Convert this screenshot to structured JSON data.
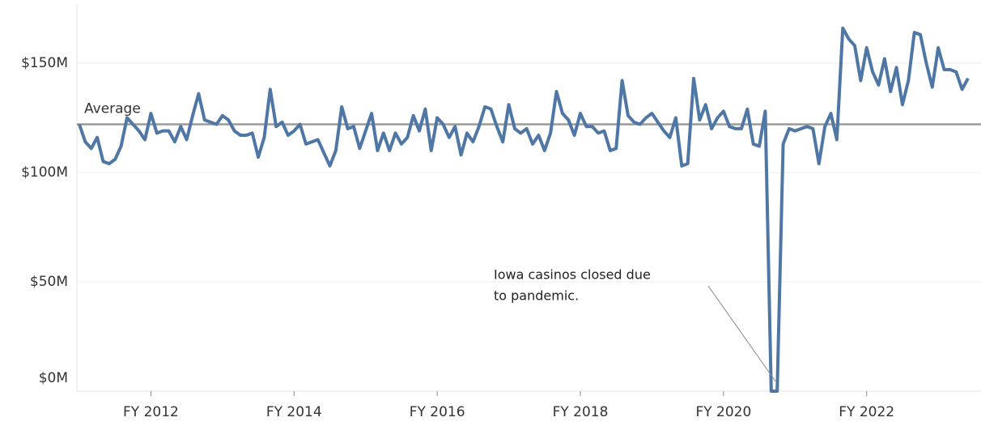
{
  "chart_data": {
    "type": "line",
    "categories": [
      null,
      null,
      null,
      null,
      null,
      null,
      null,
      null,
      null,
      null,
      null,
      null,
      "FY 2012",
      null,
      null,
      null,
      null,
      null,
      null,
      null,
      null,
      null,
      null,
      null,
      null,
      null,
      null,
      null,
      null,
      null,
      null,
      null,
      null,
      null,
      null,
      null,
      "FY 2014",
      null,
      null,
      null,
      null,
      null,
      null,
      null,
      null,
      null,
      null,
      null,
      null,
      null,
      null,
      null,
      null,
      null,
      null,
      null,
      null,
      null,
      null,
      null,
      "FY 2016",
      null,
      null,
      null,
      null,
      null,
      null,
      null,
      null,
      null,
      null,
      null,
      null,
      null,
      null,
      null,
      null,
      null,
      null,
      null,
      null,
      null,
      null,
      null,
      "FY 2018",
      null,
      null,
      null,
      null,
      null,
      null,
      null,
      null,
      null,
      null,
      null,
      null,
      null,
      null,
      null,
      null,
      null,
      null,
      null,
      null,
      null,
      null,
      null,
      "FY 2020",
      null,
      null,
      null,
      null,
      null,
      null,
      null,
      null,
      null,
      null,
      null,
      null,
      null,
      null,
      null,
      null,
      null,
      null,
      null,
      null,
      null,
      null,
      null,
      "FY 2022",
      null,
      null,
      null,
      null,
      null,
      null,
      null,
      null,
      null,
      null,
      null,
      null,
      null,
      null,
      null,
      null,
      null
    ],
    "series": [
      {
        "color": "#4f77a6",
        "values": [
          122,
          114,
          111,
          116,
          105,
          104,
          106,
          112,
          125,
          122,
          119,
          115,
          127,
          118,
          119,
          119,
          114,
          121,
          115,
          126,
          136,
          124,
          123,
          122,
          126,
          124,
          119,
          117,
          117,
          118,
          107,
          116,
          138,
          121,
          123,
          117,
          119,
          122,
          113,
          114,
          115,
          109,
          103,
          110,
          130,
          120,
          121,
          111,
          119,
          127,
          110,
          118,
          110,
          118,
          113,
          116,
          126,
          119,
          129,
          110,
          125,
          122,
          116,
          121,
          108,
          118,
          114,
          121,
          130,
          129,
          121,
          114,
          131,
          120,
          118,
          120,
          113,
          117,
          110,
          118,
          137,
          127,
          124,
          117,
          127,
          121,
          121,
          118,
          119,
          110,
          111,
          142,
          126,
          123,
          122,
          125,
          127,
          123,
          119,
          116,
          125,
          103,
          104,
          143,
          124,
          131,
          120,
          125,
          128,
          121,
          120,
          120,
          129,
          113,
          112,
          128,
          0,
          0,
          113,
          120,
          119,
          120,
          121,
          120,
          104,
          121,
          127,
          115,
          166,
          161,
          158,
          142,
          157,
          146,
          140,
          152,
          137,
          148,
          131,
          142,
          164,
          163,
          150,
          139,
          157,
          147,
          147,
          146,
          138,
          143
        ]
      }
    ],
    "ylim": [
      0,
      177
    ],
    "yticks": [
      {
        "value": 0,
        "label": "$0M"
      },
      {
        "value": 50,
        "label": "$50M"
      },
      {
        "value": 100,
        "label": "$100M"
      },
      {
        "value": 150,
        "label": "$150M"
      }
    ],
    "grid": true,
    "average": {
      "label": "Average",
      "value": 122
    },
    "annotation": {
      "text": [
        "Iowa casinos closed due",
        "to pandemic."
      ],
      "index": 117
    }
  }
}
